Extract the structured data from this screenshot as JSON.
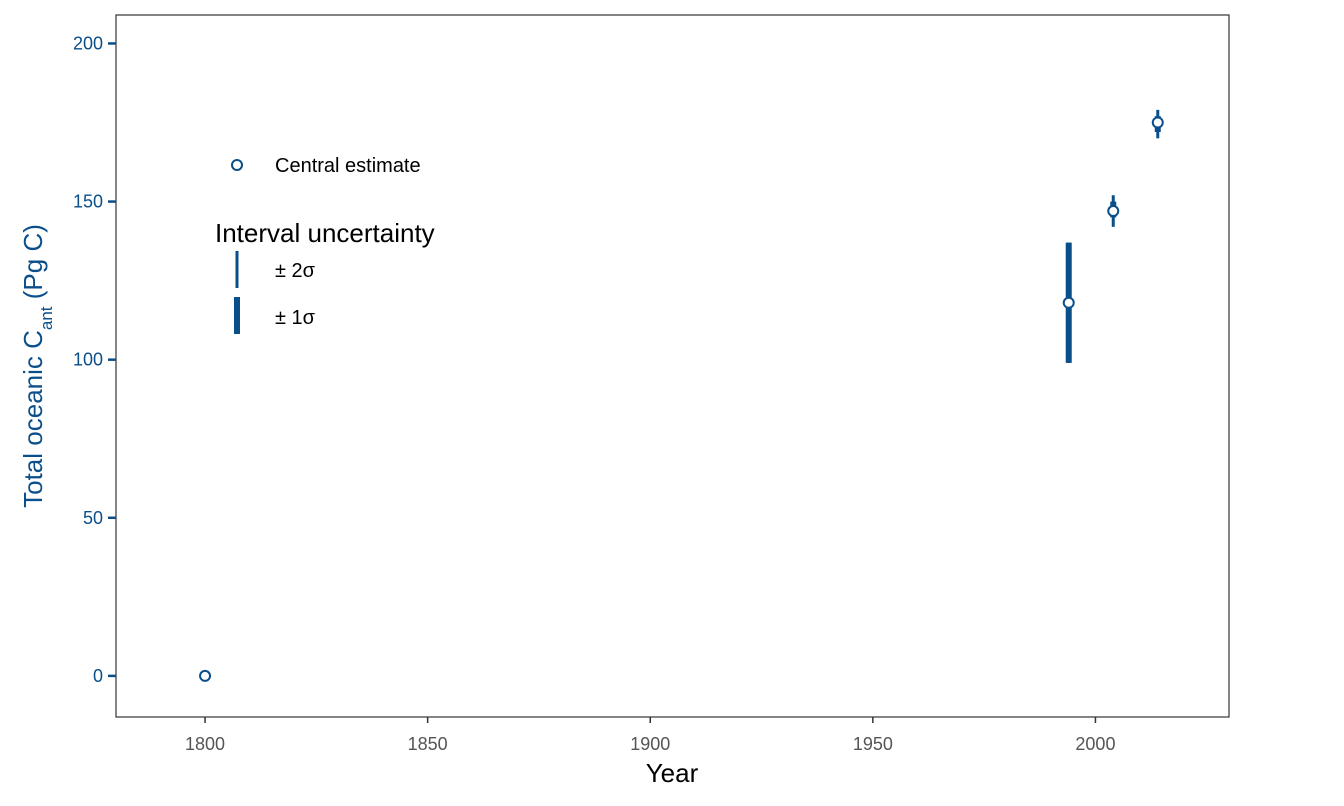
{
  "chart_data": {
    "type": "scatter",
    "title": "",
    "xlabel": "Year",
    "ylabel": "Total oceanic C",
    "ylabel_sub": "ant",
    "ylabel_unit": " (Pg C)",
    "xlim": [
      1780,
      2030
    ],
    "ylim": [
      -13,
      209
    ],
    "x_ticks": [
      1800,
      1850,
      1900,
      1950,
      2000
    ],
    "y_ticks": [
      0,
      50,
      100,
      150,
      200
    ],
    "grid": false,
    "legend_position": "top-left",
    "points": [
      {
        "x": 1800,
        "y": 0
      },
      {
        "x": 1994,
        "y": 118,
        "sd1": [
          99,
          137
        ],
        "sd2": [
          99,
          137
        ]
      },
      {
        "x": 2004,
        "y": 147,
        "sd1": [
          145,
          150
        ],
        "sd2": [
          142,
          152
        ]
      },
      {
        "x": 2014,
        "y": 175,
        "sd1": [
          172,
          177
        ],
        "sd2": [
          170,
          179
        ]
      }
    ]
  },
  "legend": {
    "central_label": "Central estimate",
    "interval_title": "Interval uncertainty",
    "two_sigma_label": "± 2σ",
    "one_sigma_label": "± 1σ"
  },
  "colors": {
    "series": "#0b4f8a",
    "axis": "#333333",
    "tick_text": "#555555"
  }
}
